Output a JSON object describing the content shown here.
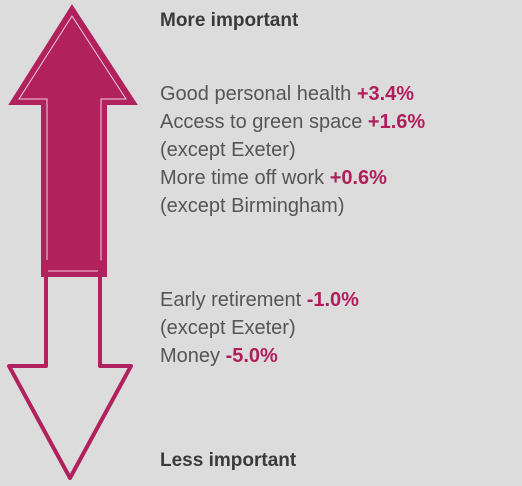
{
  "top": {
    "heading": "More important",
    "items": [
      {
        "label": "Good personal health",
        "change": "+3.4%"
      },
      {
        "label": "Access to green space",
        "change": "+1.6%",
        "note": "(except Exeter)"
      },
      {
        "label": "More time off work",
        "change": "+0.6%",
        "note": "(except Birmingham)"
      }
    ]
  },
  "bottom": {
    "heading": "Less important",
    "items": [
      {
        "label": "Early retirement",
        "change": "-1.0%",
        "note": "(except Exeter)"
      },
      {
        "label": "Money",
        "change": "-5.0%"
      }
    ]
  }
}
